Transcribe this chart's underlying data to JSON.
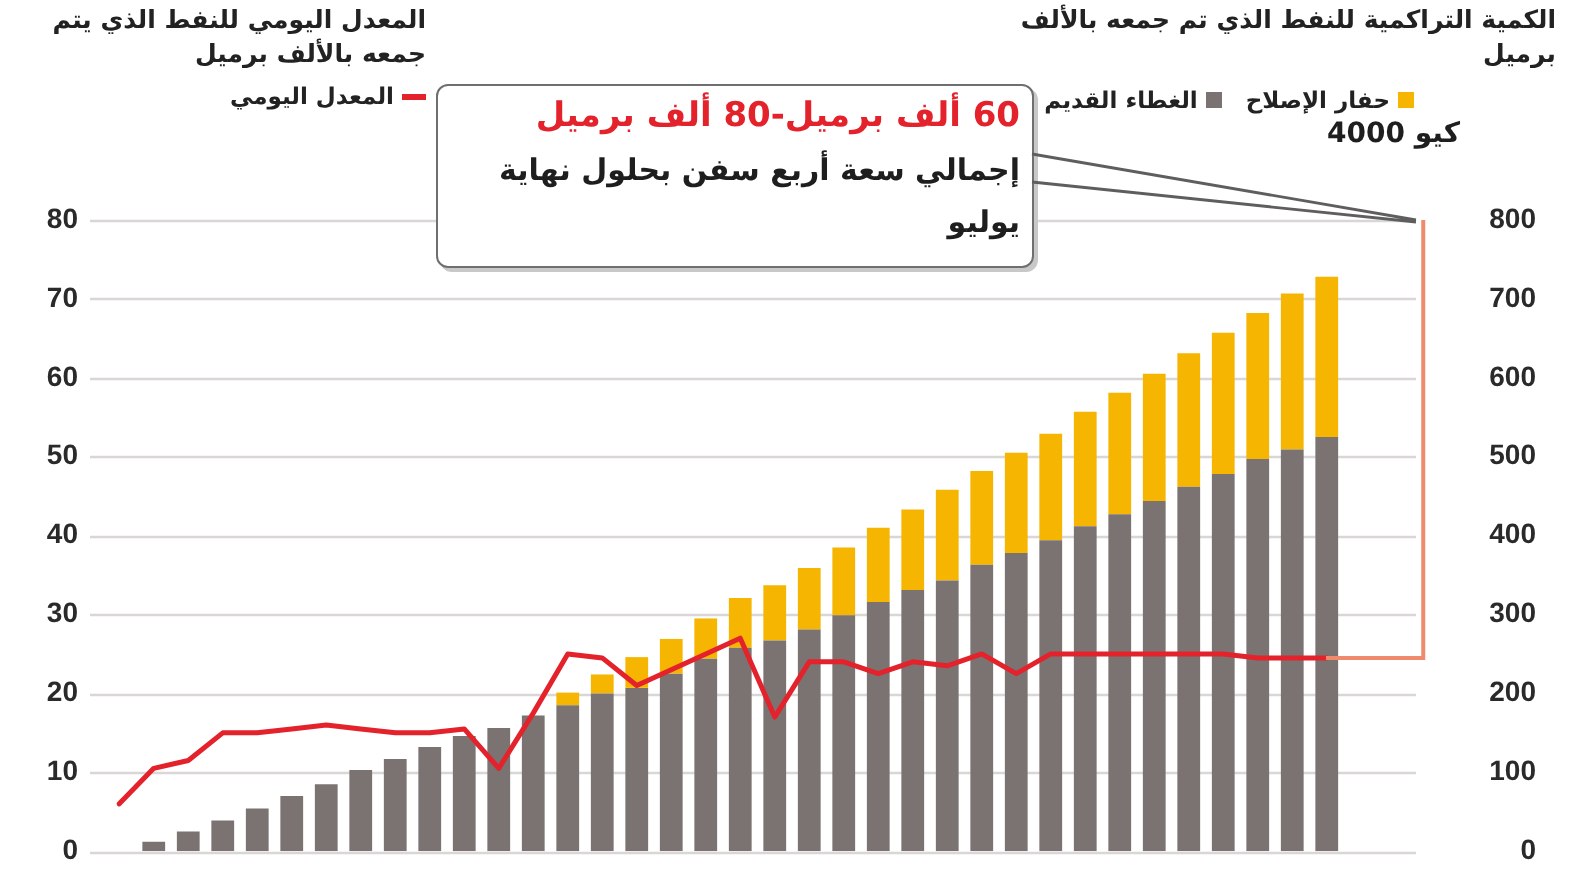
{
  "chart_data": {
    "type": "bar",
    "categories": [
      null,
      null,
      null,
      null,
      null,
      null,
      null,
      null,
      null,
      null,
      null,
      null,
      null,
      null,
      null,
      null,
      null,
      null,
      null,
      null,
      null,
      null,
      null,
      null,
      null,
      null,
      null,
      null,
      null,
      null,
      null,
      null,
      null,
      null,
      null,
      null
    ],
    "stacked": true,
    "series": [
      {
        "name": "الغطاء القديم",
        "color": "#7b7372",
        "axis": "y2",
        "values": [
          null,
          12,
          25,
          39,
          54,
          70,
          85,
          103,
          117,
          132,
          146,
          156,
          172,
          185,
          200,
          207,
          225,
          244,
          258,
          267,
          281,
          299,
          316,
          331,
          343,
          363,
          378,
          394,
          412,
          427,
          444,
          462,
          478,
          497,
          509,
          525
        ]
      },
      {
        "name": "حفار الإصلاح",
        "color": "#f6b500",
        "axis": "y2",
        "values": [
          null,
          null,
          null,
          null,
          null,
          null,
          null,
          null,
          null,
          null,
          null,
          null,
          null,
          16,
          24,
          39,
          44,
          51,
          63,
          70,
          78,
          86,
          94,
          102,
          115,
          119,
          127,
          135,
          145,
          154,
          161,
          169,
          179,
          185,
          198,
          203
        ]
      },
      {
        "name": "المعدل اليومي",
        "type": "line",
        "color": "#e3222b",
        "values": [
          6,
          10.5,
          11.5,
          15,
          15,
          15.5,
          16,
          15.5,
          15,
          15,
          15.5,
          10.5,
          17.5,
          25,
          24.5,
          21,
          23,
          25,
          27,
          17,
          24,
          24,
          22.5,
          24,
          23.5,
          25,
          22.5,
          25,
          25,
          25,
          25,
          25,
          25,
          24.5,
          24.5,
          24.5
        ]
      }
    ],
    "ylim": [
      0,
      80
    ],
    "yticks": [
      0,
      10,
      20,
      30,
      40,
      50,
      60,
      70,
      80
    ],
    "y2lim": [
      0,
      800
    ],
    "y2ticks": [
      0,
      100,
      200,
      300,
      400,
      500,
      600,
      700,
      800
    ],
    "grid": "y",
    "legend": "top",
    "marker": "none",
    "annotations": [
      "المعدل اليومي للنفط الذي يتم جمعه بالألف برميل",
      "الكمية التراكمية للنفط الذي تم جمعه بالألف برميل",
      "60 ألف برميل-80 ألف برميل",
      "إجمالي سعة أربع سفن بحلول نهاية يوليو",
      "كيو 4000"
    ]
  }
}
